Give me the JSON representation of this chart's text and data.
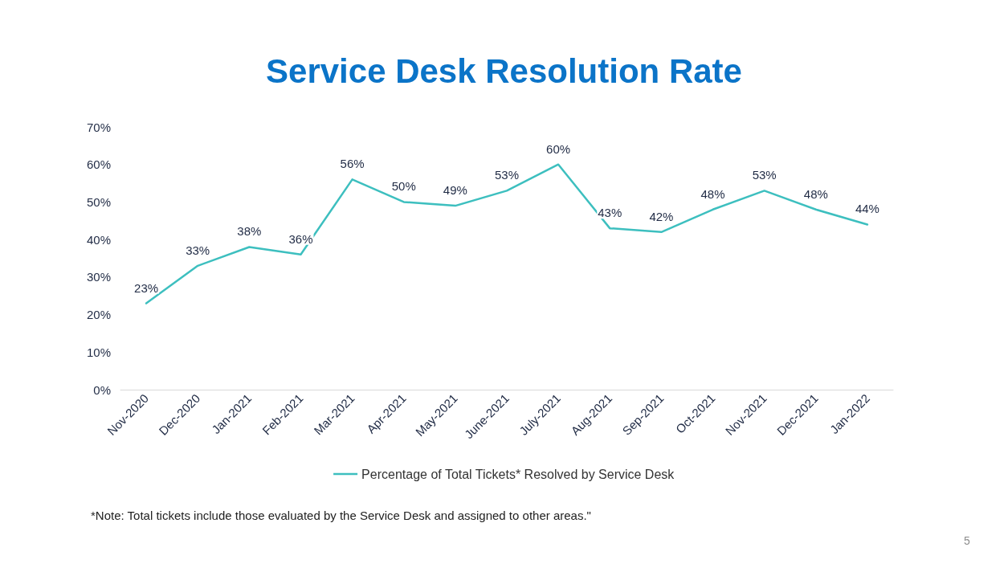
{
  "chart_data": {
    "type": "line",
    "title": "Service Desk Resolution Rate",
    "categories": [
      "Nov-2020",
      "Dec-2020",
      "Jan-2021",
      "Feb-2021",
      "Mar-2021",
      "Apr-2021",
      "May-2021",
      "June-2021",
      "July-2021",
      "Aug-2021",
      "Sep-2021",
      "Oct-2021",
      "Nov-2021",
      "Dec-2021",
      "Jan-2022"
    ],
    "series": [
      {
        "name": "Percentage of Total Tickets* Resolved by Service Desk",
        "color": "#3dbfbf",
        "values": [
          23,
          33,
          38,
          36,
          56,
          50,
          49,
          53,
          60,
          43,
          42,
          48,
          53,
          48,
          44
        ],
        "value_labels": [
          "23%",
          "33%",
          "38%",
          "36%",
          "56%",
          "50%",
          "49%",
          "53%",
          "60%",
          "43%",
          "42%",
          "48%",
          "53%",
          "48%",
          "44%"
        ]
      }
    ],
    "ylim": [
      0,
      70
    ],
    "yticks": [
      {
        "value": 0,
        "label": "0%"
      },
      {
        "value": 10,
        "label": "10%"
      },
      {
        "value": 20,
        "label": "20%"
      },
      {
        "value": 30,
        "label": "30%"
      },
      {
        "value": 40,
        "label": "40%"
      },
      {
        "value": 50,
        "label": "50%"
      },
      {
        "value": 60,
        "label": "60%"
      },
      {
        "value": 70,
        "label": "70%"
      }
    ],
    "grid": false,
    "legend": "bottom",
    "marker": "none",
    "line_style": "solid",
    "annotations": [
      "*Note: Total tickets include those evaluated by the Service Desk and assigned to other areas.\"",
      "5"
    ]
  }
}
